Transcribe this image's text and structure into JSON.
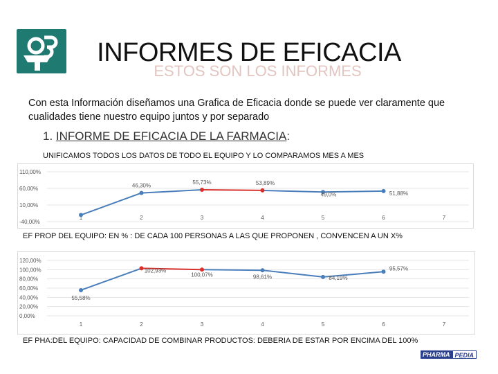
{
  "slide": {
    "title": "INFORMES DE EFICACIA",
    "subtitle": "ESTOS SON LOS INFORMES",
    "intro": "Con esta Información diseñamos una Grafica de Eficacia donde se puede ver claramente que cualidades tiene nuestro equipo juntos y por separado",
    "section_number": "1.",
    "section_title": "INFORME DE EFICACIA DE LA FARMACIA",
    "section_colon": ":",
    "note1": "UNIFICAMOS TODOS LOS DATOS DE TODO EL EQUIPO Y LO COMPARAMOS MES A MES",
    "note2": "EF PROP DEL EQUIPO: EN % : DE CADA 100 PERSONAS A LAS QUE PROPONEN , CONVENCEN A UN X%",
    "note3": "EF PHA:DEL EQUIPO: CAPACIDAD DE COMBINAR PRODUCTOS: DEBERIA DE ESTAR POR ENCIMA DEL 100%",
    "brand_part1": "PHARMA",
    "brand_part2": "PEDIA"
  },
  "colors": {
    "line": "#4a7ebb",
    "highlight": "#d9302c",
    "logo": "#1f7a72"
  },
  "icons": {
    "logo": "pharmacy-logo-icon"
  },
  "chart_data": [
    {
      "type": "line",
      "categories": [
        "1",
        "2",
        "3",
        "4",
        "5",
        "6",
        "7"
      ],
      "values": [
        -20.0,
        46.3,
        55.73,
        53.89,
        49.0,
        51.88,
        null
      ],
      "labels": [
        "",
        "46,30%",
        "55,73%",
        "53,89%",
        "49,0%",
        "51,88%",
        ""
      ],
      "ytick_labels": [
        "110,00%",
        "60,00%",
        "10,00%",
        "-40,00%"
      ],
      "ytick_values": [
        110,
        60,
        10,
        -40
      ],
      "ylim": [
        -40,
        110
      ],
      "highlight_segment": [
        2,
        3
      ]
    },
    {
      "type": "line",
      "categories": [
        "1",
        "2",
        "3",
        "4",
        "5",
        "6",
        "7"
      ],
      "values": [
        55.58,
        102.93,
        100.07,
        98.61,
        84.19,
        95.57,
        null
      ],
      "labels": [
        "55,58%",
        "102,93%",
        "100,07%",
        "98,61%",
        "84,19%",
        "95,57%",
        ""
      ],
      "ytick_labels": [
        "120,00%",
        "100,00%",
        "80,00%",
        "60,00%",
        "40,00%",
        "20,00%",
        "0,00%"
      ],
      "ytick_values": [
        120,
        100,
        80,
        60,
        40,
        20,
        0
      ],
      "ylim": [
        0,
        120
      ],
      "highlight_segment": [
        1,
        2
      ]
    }
  ]
}
